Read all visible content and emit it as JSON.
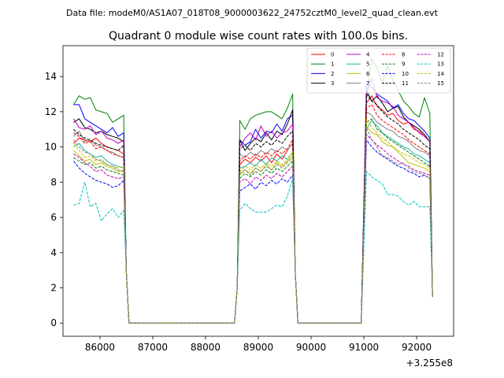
{
  "header": {
    "data_file": "Data file: modeM0/AS1A07_018T08_9000003622_24752cztM0_level2_quad_clean.evt"
  },
  "chart_data": {
    "type": "line",
    "title": "Quadrant 0 module wise count rates with 100.0s bins.",
    "xlabel": "",
    "ylabel": "",
    "x_offset_label": "+3.255e8",
    "xlim": [
      85300,
      92700
    ],
    "ylim": [
      -0.75,
      15.75
    ],
    "xticks": [
      86000,
      87000,
      88000,
      89000,
      90000,
      91000,
      92000
    ],
    "xtick_labels": [
      "86000",
      "87000",
      "88000",
      "89000",
      "90000",
      "91000",
      "92000"
    ],
    "yticks": [
      0,
      2,
      4,
      6,
      8,
      10,
      12,
      14
    ],
    "ytick_labels": [
      "0",
      "2",
      "4",
      "6",
      "8",
      "10",
      "12",
      "14"
    ],
    "grid": false,
    "legend_position": "top-right",
    "segments": [
      {
        "x_start": 85500,
        "x_end": 86450,
        "tail": [
          2.9,
          0.0
        ]
      },
      {
        "x_start": 86550,
        "x_end": 88550,
        "flat": 0.0
      },
      {
        "x_start": 88650,
        "x_end": 89650,
        "head": [
          2.0
        ],
        "tail": [
          2.9,
          0.0
        ]
      },
      {
        "x_start": 89750,
        "x_end": 90950,
        "flat": 0.0
      },
      {
        "x_start": 91050,
        "x_end": 92250,
        "tail": [
          1.5
        ]
      }
    ],
    "series": [
      {
        "name": "0",
        "color": "#ff0000",
        "dash": "solid",
        "seg1": [
          10.2,
          10.5,
          10.4,
          10.3,
          10.5,
          10.2,
          10.0,
          9.9,
          9.8,
          9.6
        ],
        "seg2": [
          9.0,
          9.3,
          9.1,
          9.4,
          9.2,
          9.5,
          9.1,
          9.6,
          9.3,
          9.8,
          10.2
        ],
        "seg3": [
          12.5,
          12.9,
          12.3,
          12.1,
          11.8,
          11.9,
          11.5,
          11.3,
          11.4,
          11.0,
          10.9,
          10.6,
          10.3
        ]
      },
      {
        "name": "1",
        "color": "#008000",
        "dash": "solid",
        "seg1": [
          12.4,
          12.9,
          12.7,
          12.8,
          12.1,
          12.0,
          11.9,
          11.4,
          11.6,
          11.8
        ],
        "seg2": [
          11.5,
          11.0,
          11.6,
          11.8,
          11.9,
          12.0,
          12.0,
          11.8,
          11.6,
          12.2,
          13.0
        ],
        "seg3": [
          12.8,
          15.0,
          14.5,
          13.6,
          14.6,
          13.8,
          13.2,
          12.6,
          12.3,
          11.9,
          11.7,
          12.8,
          11.9
        ]
      },
      {
        "name": "2",
        "color": "#0000ff",
        "dash": "solid",
        "seg1": [
          12.4,
          12.4,
          11.6,
          11.4,
          11.2,
          11.0,
          10.8,
          11.1,
          10.6,
          10.8
        ],
        "seg2": [
          10.4,
          10.1,
          10.3,
          11.0,
          10.5,
          10.9,
          10.8,
          11.3,
          10.9,
          11.6,
          11.8
        ],
        "seg3": [
          13.6,
          13.4,
          13.0,
          12.8,
          12.6,
          12.2,
          12.4,
          11.9,
          11.6,
          11.5,
          11.2,
          10.9,
          10.5
        ]
      },
      {
        "name": "3",
        "color": "#000000",
        "dash": "solid",
        "seg1": [
          11.4,
          11.6,
          11.1,
          11.0,
          10.8,
          10.9,
          10.7,
          10.6,
          10.5,
          10.3
        ],
        "seg2": [
          10.4,
          9.8,
          10.2,
          10.5,
          10.3,
          10.8,
          10.4,
          10.9,
          10.7,
          11.3,
          12.1
        ],
        "seg3": [
          13.2,
          12.6,
          12.9,
          12.5,
          12.0,
          12.2,
          12.3,
          11.7,
          11.4,
          11.2,
          11.0,
          10.7,
          10.3
        ]
      },
      {
        "name": "4",
        "color": "#c000c0",
        "dash": "solid",
        "seg1": [
          11.6,
          11.1,
          11.0,
          11.2,
          10.7,
          10.9,
          10.5,
          10.4,
          10.2,
          10.4
        ],
        "seg2": [
          10.0,
          10.5,
          10.8,
          10.4,
          11.2,
          10.6,
          10.9,
          10.5,
          10.8,
          10.9,
          11.3
        ],
        "seg3": [
          13.0,
          13.9,
          12.8,
          12.6,
          12.5,
          12.3,
          11.8,
          11.6,
          11.4,
          11.1,
          10.8,
          10.6,
          10.3
        ]
      },
      {
        "name": "5",
        "color": "#20b2aa",
        "dash": "solid",
        "seg1": [
          10.0,
          10.2,
          9.8,
          9.6,
          9.4,
          9.5,
          9.2,
          9.0,
          8.9,
          8.8
        ],
        "seg2": [
          8.8,
          8.9,
          9.1,
          8.9,
          9.3,
          9.0,
          9.4,
          9.2,
          9.5,
          9.3,
          9.7
        ],
        "seg3": [
          11.0,
          11.5,
          11.2,
          10.8,
          10.6,
          10.4,
          10.2,
          10.0,
          9.9,
          9.6,
          9.5,
          9.3,
          9.1
        ]
      },
      {
        "name": "6",
        "color": "#bfbf00",
        "dash": "solid",
        "seg1": [
          9.8,
          9.5,
          9.2,
          9.3,
          9.0,
          9.1,
          8.9,
          8.8,
          8.6,
          8.7
        ],
        "seg2": [
          8.4,
          8.7,
          8.5,
          8.8,
          8.6,
          9.0,
          8.7,
          9.1,
          8.9,
          9.2,
          9.5
        ],
        "seg3": [
          11.2,
          10.8,
          10.7,
          10.3,
          10.1,
          10.0,
          9.7,
          9.4,
          9.1,
          9.0,
          8.9,
          8.8,
          8.6
        ]
      },
      {
        "name": "7",
        "color": "#808080",
        "dash": "solid",
        "seg1": [
          10.6,
          10.9,
          10.3,
          10.4,
          10.1,
          10.0,
          9.8,
          9.7,
          9.5,
          9.4
        ],
        "seg2": [
          9.6,
          9.4,
          9.7,
          9.5,
          9.8,
          9.6,
          9.9,
          9.7,
          10.0,
          9.8,
          10.2
        ],
        "seg3": [
          12.0,
          11.8,
          11.4,
          11.2,
          11.0,
          10.9,
          10.6,
          10.5,
          10.3,
          10.0,
          9.8,
          9.7,
          9.5
        ]
      },
      {
        "name": "8",
        "color": "#ff0000",
        "dash": "dashed",
        "seg1": [
          10.8,
          10.6,
          10.2,
          10.3,
          9.9,
          10.0,
          9.8,
          9.6,
          9.5,
          9.4
        ],
        "seg2": [
          9.2,
          9.5,
          9.3,
          9.6,
          9.4,
          9.7,
          9.5,
          9.8,
          9.6,
          9.9,
          10.4
        ],
        "seg3": [
          12.2,
          12.4,
          11.8,
          11.5,
          11.3,
          11.1,
          10.9,
          10.7,
          10.4,
          10.2,
          10.0,
          9.8,
          9.6
        ]
      },
      {
        "name": "9",
        "color": "#008000",
        "dash": "dashed",
        "seg1": [
          9.4,
          9.2,
          9.0,
          9.1,
          8.8,
          8.9,
          8.7,
          8.6,
          8.5,
          8.4
        ],
        "seg2": [
          8.2,
          8.5,
          8.3,
          8.6,
          8.4,
          8.7,
          8.5,
          8.8,
          8.6,
          8.9,
          9.2
        ],
        "seg3": [
          11.4,
          11.6,
          11.0,
          10.8,
          10.5,
          10.3,
          10.1,
          9.9,
          9.7,
          9.5,
          9.3,
          9.1,
          8.9
        ]
      },
      {
        "name": "10",
        "color": "#0000ff",
        "dash": "dashed",
        "seg1": [
          9.2,
          8.8,
          8.5,
          8.3,
          8.1,
          8.0,
          7.9,
          7.7,
          7.8,
          8.1
        ],
        "seg2": [
          7.5,
          7.7,
          7.9,
          7.6,
          8.0,
          7.8,
          8.1,
          7.9,
          8.2,
          8.0,
          8.4
        ],
        "seg3": [
          10.4,
          10.0,
          9.7,
          9.5,
          9.3,
          9.1,
          8.9,
          8.8,
          8.6,
          8.5,
          8.3,
          8.4,
          8.2
        ]
      },
      {
        "name": "11",
        "color": "#000000",
        "dash": "dashed",
        "seg1": [
          11.0,
          10.7,
          10.5,
          10.4,
          10.2,
          10.1,
          10.0,
          9.9,
          9.8,
          10.1
        ],
        "seg2": [
          9.9,
          10.1,
          9.8,
          10.2,
          10.0,
          10.3,
          10.1,
          10.4,
          10.2,
          10.6,
          10.9
        ],
        "seg3": [
          13.0,
          12.6,
          12.4,
          12.0,
          11.7,
          11.5,
          11.3,
          11.0,
          10.8,
          10.6,
          10.4,
          10.1,
          9.9
        ]
      },
      {
        "name": "12",
        "color": "#c000c0",
        "dash": "dashed",
        "seg1": [
          9.6,
          9.4,
          9.1,
          8.9,
          8.6,
          8.7,
          8.4,
          8.3,
          8.2,
          8.3
        ],
        "seg2": [
          8.0,
          8.2,
          7.9,
          8.3,
          8.1,
          8.4,
          8.2,
          8.5,
          8.3,
          8.6,
          8.9
        ],
        "seg3": [
          10.7,
          10.4,
          10.1,
          9.9,
          9.6,
          9.4,
          9.2,
          9.0,
          8.9,
          8.7,
          8.6,
          8.5,
          8.4
        ]
      },
      {
        "name": "13",
        "color": "#00bfbf",
        "dash": "dashed",
        "seg1": [
          6.7,
          6.8,
          8.0,
          6.6,
          6.8,
          5.8,
          6.2,
          6.5,
          6.0,
          6.4
        ],
        "seg2": [
          6.4,
          6.8,
          6.5,
          6.3,
          6.3,
          6.3,
          6.5,
          6.7,
          6.6,
          7.2,
          8.2
        ],
        "seg3": [
          8.6,
          8.3,
          8.1,
          7.9,
          7.3,
          7.3,
          7.2,
          6.9,
          6.7,
          6.9,
          6.6,
          6.6,
          6.6
        ]
      },
      {
        "name": "14",
        "color": "#bfbf00",
        "dash": "dashed",
        "seg1": [
          10.2,
          9.8,
          9.4,
          9.5,
          9.2,
          9.3,
          9.0,
          8.9,
          8.8,
          8.9
        ],
        "seg2": [
          8.6,
          8.9,
          8.7,
          9.0,
          8.8,
          9.1,
          8.9,
          9.2,
          9.0,
          9.3,
          9.7
        ],
        "seg3": [
          11.6,
          11.1,
          10.8,
          10.5,
          10.3,
          10.0,
          9.8,
          9.6,
          9.5,
          9.3,
          9.1,
          9.0,
          8.8
        ]
      },
      {
        "name": "15",
        "color": "#808080",
        "dash": "dashed",
        "seg1": [
          10.4,
          10.0,
          9.7,
          9.6,
          9.3,
          9.2,
          9.0,
          8.9,
          8.7,
          8.6
        ],
        "seg2": [
          8.5,
          8.7,
          8.4,
          8.8,
          8.6,
          8.9,
          8.7,
          9.0,
          8.8,
          9.1,
          9.4
        ],
        "seg3": [
          11.1,
          10.4,
          10.0,
          9.5,
          9.4,
          9.2,
          9.0,
          9.1,
          8.8,
          8.6,
          8.5,
          8.4,
          8.2
        ]
      }
    ]
  }
}
